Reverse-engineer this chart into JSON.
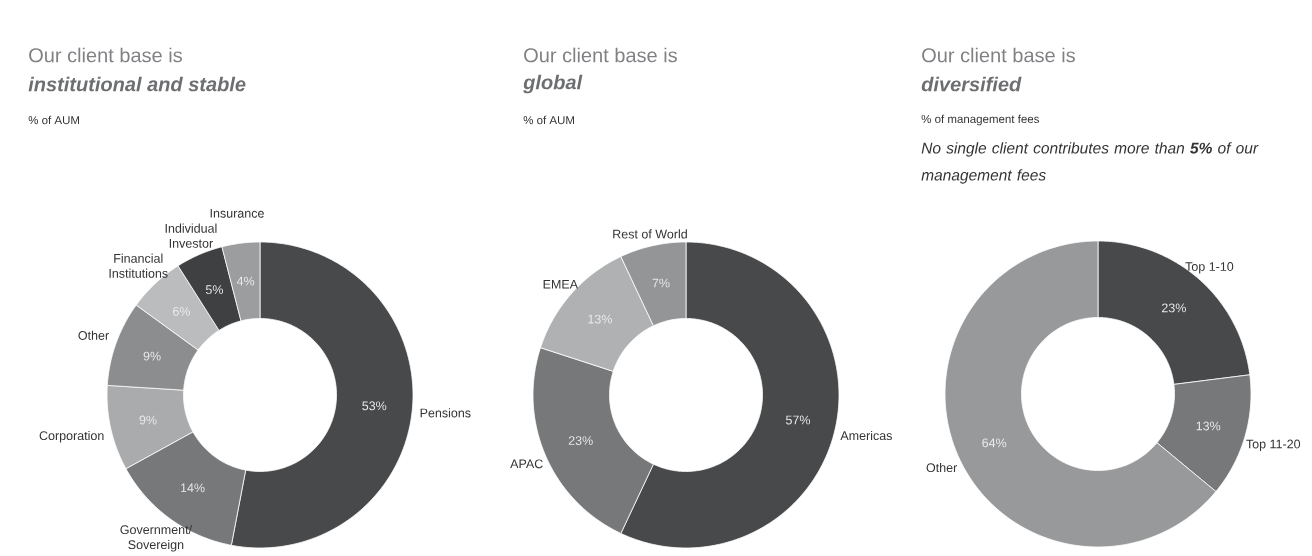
{
  "chart_data": [
    {
      "type": "donut",
      "title": "Our client base is",
      "subtitle": "institutional and stable",
      "annotations": [
        "% of AUM"
      ],
      "categories": [
        "Pensions",
        "Government/ Sovereign",
        "Corporation",
        "Other",
        "Financial Institutions",
        "Individual Investor",
        "Insurance"
      ],
      "values": [
        53,
        14,
        9,
        9,
        6,
        5,
        4
      ],
      "value_labels": [
        "53%",
        "14%",
        "9%",
        "9%",
        "6%",
        "5%",
        "4%"
      ],
      "colors": [
        "#48494b",
        "#77787a",
        "#aaabad",
        "#8c8d8f",
        "#bbbcbe",
        "#3f4042",
        "#9c9d9f"
      ]
    },
    {
      "type": "donut",
      "title": "Our client base is",
      "subtitle": "global",
      "annotations": [
        "% of AUM"
      ],
      "categories": [
        "Americas",
        "APAC",
        "EMEA",
        "Rest of World"
      ],
      "values": [
        57,
        23,
        13,
        7
      ],
      "value_labels": [
        "57%",
        "23%",
        "13%",
        "7%"
      ],
      "colors": [
        "#48494b",
        "#77787a",
        "#b0b1b3",
        "#949597"
      ]
    },
    {
      "type": "donut",
      "title": "Our client base is",
      "subtitle": "diversified",
      "annotations": [
        "% of management fees",
        "No single client contributes more than **5%** of our management fees"
      ],
      "categories": [
        "Top 1-10",
        "Top 11-20",
        "Other"
      ],
      "values": [
        23,
        13,
        64
      ],
      "value_labels": [
        "23%",
        "13%",
        "64%"
      ],
      "colors": [
        "#48494b",
        "#77787a",
        "#98999b"
      ]
    }
  ]
}
